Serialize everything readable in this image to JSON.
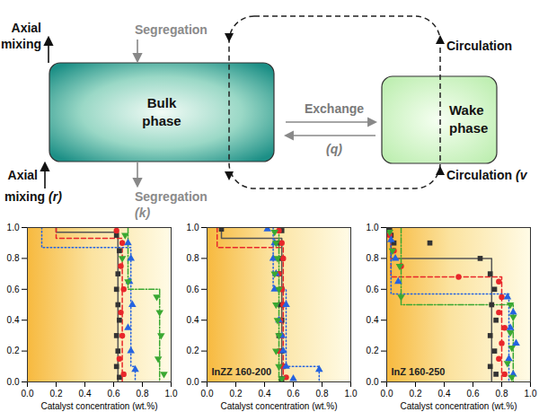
{
  "diagram": {
    "bulk_phase": "Bulk phase",
    "wake_phase": "Wake phase",
    "axial_mixing_top": "Axial mixing",
    "axial_mixing_bottom": {
      "text": "Axial mixing",
      "symbol": "(r)"
    },
    "segregation_top": "Segregation",
    "segregation_bottom": {
      "text": "Segregation",
      "symbol": "(k)"
    },
    "exchange": {
      "text": "Exchange",
      "symbol": "(q)"
    },
    "circulation_top": "Circulation",
    "circulation_bottom": {
      "text": "Circulation",
      "symbol": "(v"
    }
  },
  "chart_data": [
    {
      "type": "scatter",
      "x_label": "Catalyst concentration (wt.%)",
      "xlim": [
        0,
        1
      ],
      "xticks": [
        {
          "value": 0,
          "label": "0.0"
        },
        {
          "value": 0.2,
          "label": "0.2"
        },
        {
          "value": 0.4,
          "label": "0.4"
        },
        {
          "value": 0.6,
          "label": "0.6"
        },
        {
          "value": 0.8,
          "label": "0.8"
        },
        {
          "value": 1,
          "label": "1.0"
        }
      ],
      "ylim": [
        0,
        1
      ],
      "yticks": [
        {
          "value": 0,
          "label": "0.0"
        },
        {
          "value": 0.2,
          "label": "0.2"
        },
        {
          "value": 0.4,
          "label": "0.4"
        },
        {
          "value": 0.6,
          "label": "0.6"
        },
        {
          "value": 0.8,
          "label": "0.8"
        },
        {
          "value": 1,
          "label": "1.0"
        }
      ],
      "series": [
        {
          "type": "scatter",
          "color": "#333333",
          "marker": "square",
          "x": [
            0.62,
            0.64,
            0.63,
            0.62,
            0.63,
            0.64,
            0.62,
            0.63,
            0.62,
            0.64
          ],
          "values": [
            0.95,
            0.85,
            0.7,
            0.6,
            0.5,
            0.4,
            0.3,
            0.2,
            0.1,
            0.03
          ]
        },
        {
          "type": "scatter",
          "color": "#e8262a",
          "marker": "circle",
          "x": [
            0.62,
            0.66,
            0.65,
            0.67,
            0.65,
            0.66,
            0.64,
            0.67
          ],
          "values": [
            0.98,
            0.9,
            0.75,
            0.6,
            0.45,
            0.3,
            0.15,
            0.05
          ]
        },
        {
          "type": "scatter",
          "color": "#2563e0",
          "marker": "triangle",
          "x": [
            0.7,
            0.72,
            0.71,
            0.73,
            0.7,
            0.72,
            0.75
          ],
          "values": [
            0.9,
            0.8,
            0.65,
            0.5,
            0.35,
            0.2,
            0.08
          ]
        },
        {
          "type": "scatter",
          "color": "#3aa832",
          "marker": "triangle-down",
          "x": [
            0.68,
            0.66,
            0.7,
            0.9,
            0.92,
            0.93,
            0.91,
            0.95
          ],
          "values": [
            0.95,
            0.8,
            0.65,
            0.55,
            0.45,
            0.3,
            0.15,
            0.05
          ]
        },
        {
          "type": "line",
          "color": "#555555",
          "line_style": "solid",
          "x": [
            0.2,
            0.2,
            0.63,
            0.63
          ],
          "values": [
            1,
            0.97,
            0.97,
            0
          ]
        },
        {
          "type": "line",
          "color": "#e8262a",
          "line_style": "dashed",
          "x": [
            0.2,
            0.2,
            0.66,
            0.66
          ],
          "values": [
            1,
            0.93,
            0.93,
            0
          ]
        },
        {
          "type": "line",
          "color": "#2563e0",
          "line_style": "dotted",
          "x": [
            0.1,
            0.1,
            0.72,
            0.72,
            0.75,
            0.75
          ],
          "values": [
            1,
            0.87,
            0.87,
            0.1,
            0.1,
            0
          ]
        },
        {
          "type": "line",
          "color": "#3aa832",
          "line_style": "dashdot",
          "x": [
            0.7,
            0.7,
            0.92,
            0.92
          ],
          "values": [
            1,
            0.6,
            0.6,
            0
          ]
        }
      ]
    },
    {
      "type": "scatter",
      "annotations": [
        "InZZ 160-200"
      ],
      "x_label": "Catalyst concentration (wt.%)",
      "xlim": [
        0,
        1
      ],
      "xticks": [
        {
          "value": 0,
          "label": "0.0"
        },
        {
          "value": 0.2,
          "label": "0.2"
        },
        {
          "value": 0.4,
          "label": "0.4"
        },
        {
          "value": 0.6,
          "label": "0.6"
        },
        {
          "value": 0.8,
          "label": "0.8"
        },
        {
          "value": 1,
          "label": "1.0"
        }
      ],
      "ylim": [
        0,
        1
      ],
      "yticks": [
        {
          "value": 0,
          "label": "0.0"
        },
        {
          "value": 0.2,
          "label": "0.2"
        },
        {
          "value": 0.4,
          "label": "0.4"
        },
        {
          "value": 0.6,
          "label": "0.6"
        },
        {
          "value": 0.8,
          "label": "0.8"
        },
        {
          "value": 1,
          "label": "1.0"
        }
      ],
      "series": [
        {
          "type": "scatter",
          "color": "#333333",
          "marker": "square",
          "x": [
            0.1,
            0.52,
            0.5,
            0.52,
            0.5,
            0.52,
            0.51,
            0.52,
            0.5,
            0.52,
            0.53,
            0.52
          ],
          "values": [
            0.99,
            0.98,
            0.9,
            0.8,
            0.7,
            0.6,
            0.5,
            0.4,
            0.3,
            0.2,
            0.1,
            0.02
          ]
        },
        {
          "type": "scatter",
          "color": "#e8262a",
          "marker": "circle",
          "x": [
            0.5,
            0.52,
            0.53,
            0.5,
            0.52,
            0.53,
            0.51,
            0.52,
            0.5,
            0.53,
            0.55
          ],
          "values": [
            0.98,
            0.9,
            0.8,
            0.7,
            0.6,
            0.5,
            0.4,
            0.3,
            0.2,
            0.1,
            0.03
          ]
        },
        {
          "type": "scatter",
          "color": "#2563e0",
          "marker": "triangle",
          "x": [
            0.42,
            0.47,
            0.46,
            0.48,
            0.47,
            0.55,
            0.5,
            0.52,
            0.53,
            0.55,
            0.78,
            0.6
          ],
          "values": [
            0.99,
            0.9,
            0.8,
            0.7,
            0.6,
            0.5,
            0.4,
            0.3,
            0.2,
            0.1,
            0.08,
            0.02
          ]
        },
        {
          "type": "scatter",
          "color": "#3aa832",
          "marker": "triangle-down",
          "x": [
            0.47,
            0.48,
            0.49,
            0.47,
            0.5,
            0.48,
            0.49,
            0.5,
            0.48,
            0.5,
            0.52
          ],
          "values": [
            0.97,
            0.9,
            0.8,
            0.7,
            0.6,
            0.5,
            0.4,
            0.3,
            0.2,
            0.1,
            0.02
          ]
        },
        {
          "type": "line",
          "color": "#555555",
          "line_style": "solid",
          "x": [
            0.1,
            0.1,
            0.52,
            0.52
          ],
          "values": [
            1,
            0.93,
            0.93,
            0
          ]
        },
        {
          "type": "line",
          "color": "#e8262a",
          "line_style": "dashed",
          "x": [
            0.07,
            0.07,
            0.53,
            0.53
          ],
          "values": [
            1,
            0.87,
            0.87,
            0
          ]
        },
        {
          "type": "line",
          "color": "#2563e0",
          "line_style": "dotted",
          "x": [
            0.46,
            0.46,
            0.55,
            0.55,
            0.78,
            0.78
          ],
          "values": [
            1,
            0.6,
            0.6,
            0.1,
            0.1,
            0
          ]
        },
        {
          "type": "line",
          "color": "#3aa832",
          "line_style": "dashdot",
          "x": [
            0.5,
            0.5
          ],
          "values": [
            1,
            0
          ]
        }
      ]
    },
    {
      "type": "scatter",
      "annotations": [
        "InZ 160-250"
      ],
      "x_label": "Catalyst concentration (wt.%)",
      "xlim": [
        0,
        1
      ],
      "xticks": [
        {
          "value": 0,
          "label": "0.0"
        },
        {
          "value": 0.2,
          "label": "0.2"
        },
        {
          "value": 0.4,
          "label": "0.4"
        },
        {
          "value": 0.6,
          "label": "0.6"
        },
        {
          "value": 0.8,
          "label": "0.8"
        },
        {
          "value": 1,
          "label": "1.0"
        }
      ],
      "ylim": [
        0,
        1
      ],
      "yticks": [
        {
          "value": 0,
          "label": "0.0"
        },
        {
          "value": 0.2,
          "label": "0.2"
        },
        {
          "value": 0.4,
          "label": "0.4"
        },
        {
          "value": 0.6,
          "label": "0.6"
        },
        {
          "value": 0.8,
          "label": "0.8"
        },
        {
          "value": 1,
          "label": "1.0"
        }
      ],
      "series": [
        {
          "type": "scatter",
          "color": "#333333",
          "marker": "square",
          "x": [
            0.02,
            0.03,
            0.05,
            0.3,
            0.65,
            0.72,
            0.75,
            0.73,
            0.76,
            0.72,
            0.75,
            0.72,
            0.76
          ],
          "values": [
            1,
            0.95,
            0.9,
            0.9,
            0.8,
            0.7,
            0.6,
            0.5,
            0.4,
            0.3,
            0.2,
            0.1,
            0.05
          ]
        },
        {
          "type": "scatter",
          "color": "#e8262a",
          "marker": "circle",
          "x": [
            0.02,
            0.05,
            0.1,
            0.5,
            0.78,
            0.8,
            0.78,
            0.82,
            0.8,
            0.78,
            0.82
          ],
          "values": [
            0.95,
            0.85,
            0.75,
            0.68,
            0.65,
            0.55,
            0.45,
            0.35,
            0.25,
            0.15,
            0.05
          ]
        },
        {
          "type": "scatter",
          "color": "#2563e0",
          "marker": "triangle",
          "x": [
            0.03,
            0.06,
            0.08,
            0.84,
            0.88,
            0.86,
            0.9,
            0.85,
            0.88
          ],
          "values": [
            0.92,
            0.8,
            0.65,
            0.55,
            0.45,
            0.35,
            0.25,
            0.15,
            0.05
          ]
        },
        {
          "type": "scatter",
          "color": "#3aa832",
          "marker": "triangle-down",
          "x": [
            0.02,
            0.04,
            0.09,
            0.1,
            0.86,
            0.88,
            0.86,
            0.87,
            0.84,
            0.87
          ],
          "values": [
            0.97,
            0.85,
            0.75,
            0.55,
            0.5,
            0.42,
            0.32,
            0.22,
            0.12,
            0.03
          ]
        },
        {
          "type": "line",
          "color": "#555555",
          "line_style": "solid",
          "x": [
            0.03,
            0.03,
            0.73,
            0.73
          ],
          "values": [
            1,
            0.8,
            0.8,
            0
          ]
        },
        {
          "type": "line",
          "color": "#e8262a",
          "line_style": "dashed",
          "x": [
            0.03,
            0.03,
            0.8,
            0.8
          ],
          "values": [
            1,
            0.68,
            0.68,
            0
          ]
        },
        {
          "type": "line",
          "color": "#2563e0",
          "line_style": "dotted",
          "x": [
            0.03,
            0.03,
            0.85,
            0.85
          ],
          "values": [
            1,
            0.57,
            0.57,
            0
          ]
        },
        {
          "type": "line",
          "color": "#3aa832",
          "line_style": "dashdot",
          "x": [
            0.1,
            0.1,
            0.88,
            0.88
          ],
          "values": [
            1,
            0.5,
            0.5,
            0
          ]
        }
      ]
    }
  ]
}
